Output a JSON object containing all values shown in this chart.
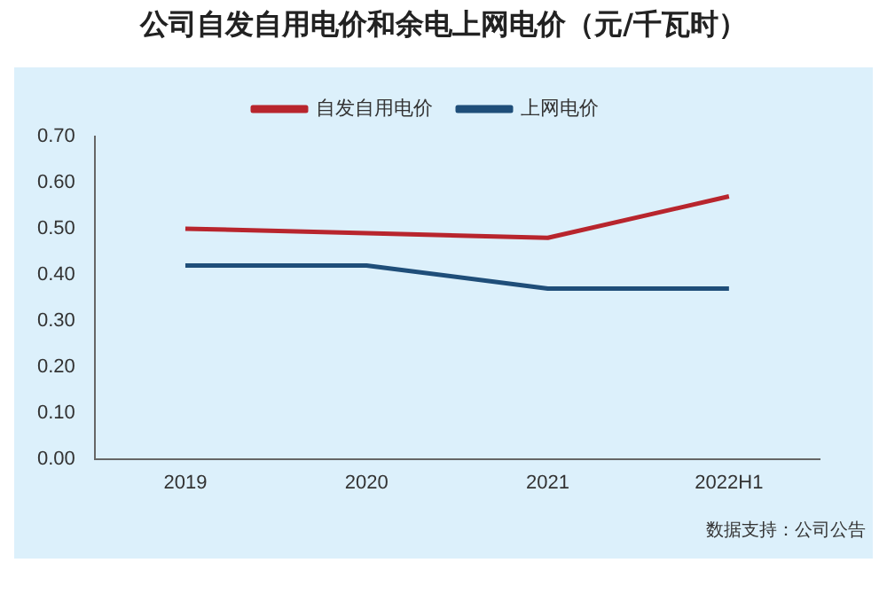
{
  "chart_data": {
    "type": "line",
    "title": "公司自发自用电价和余电上网电价（元/千瓦时）",
    "categories": [
      "2019",
      "2020",
      "2021",
      "2022H1"
    ],
    "series": [
      {
        "name": "自发自用电价",
        "color": "#b8252d",
        "values": [
          0.5,
          0.49,
          0.48,
          0.57
        ]
      },
      {
        "name": "上网电价",
        "color": "#1f4e79",
        "values": [
          0.42,
          0.42,
          0.37,
          0.37
        ]
      }
    ],
    "ylim": [
      0,
      0.7
    ],
    "yticks": [
      {
        "value": 0,
        "label": "0.00"
      },
      {
        "value": 0.1,
        "label": "0.10"
      },
      {
        "value": 0.2,
        "label": "0.20"
      },
      {
        "value": 0.3,
        "label": "0.30"
      },
      {
        "value": 0.4,
        "label": "0.40"
      },
      {
        "value": 0.5,
        "label": "0.50"
      },
      {
        "value": 0.6,
        "label": "0.60"
      },
      {
        "value": 0.7,
        "label": "0.70"
      }
    ],
    "grid": false,
    "legend": "top",
    "marker": "none",
    "line_style": "solid",
    "annotations": [
      "数据支持：公司公告"
    ]
  }
}
